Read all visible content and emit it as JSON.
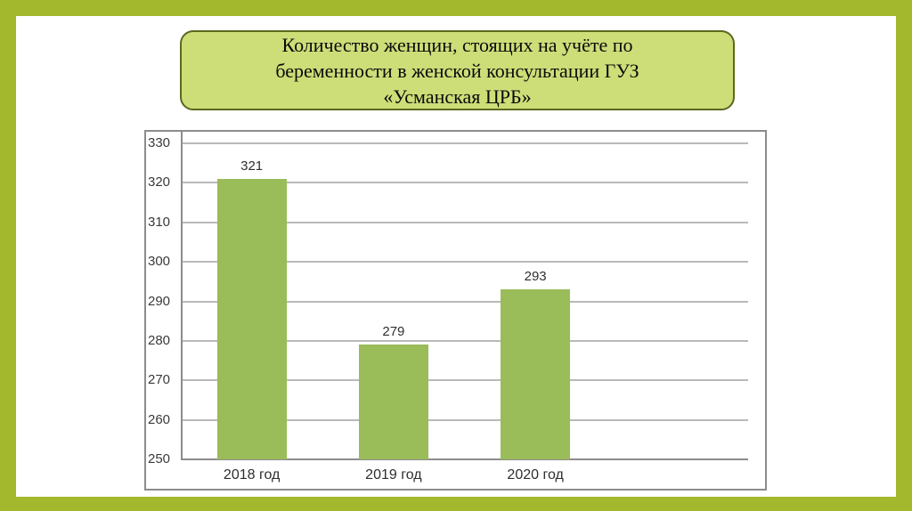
{
  "slide": {
    "title": {
      "lines": [
        "Количество женщин, стоящих на учёте по",
        "беременности в женской консультации ГУЗ",
        "«Усманская ЦРБ»"
      ]
    }
  },
  "chart_data": {
    "type": "bar",
    "title": "Количество женщин, стоящих на учёте по беременности в женской консультации ГУЗ «Усманская ЦРБ»",
    "categories": [
      "2018 год",
      "2019 год",
      "2020 год"
    ],
    "values": [
      321,
      279,
      293
    ],
    "xlabel": "",
    "ylabel": "",
    "ylim": [
      250,
      330
    ],
    "ytick_step": 10,
    "ytick_labels": [
      "250",
      "260",
      "270",
      "280",
      "290",
      "300",
      "310",
      "320",
      "330"
    ],
    "grid": true,
    "legend": false,
    "x_slots": 4
  },
  "colors": {
    "frame_green": "#a3b82d",
    "canvas_white": "#ffffff",
    "title_fill": "#cdde78",
    "title_border": "#5a691e",
    "title_text": "#0b0b0b",
    "bar_fill": "#9abc59",
    "gridline": "#b9b9b9",
    "axis": "#8c8c8c",
    "chart_border": "#8c8c8c",
    "tick_text": "#3a3a3a"
  }
}
